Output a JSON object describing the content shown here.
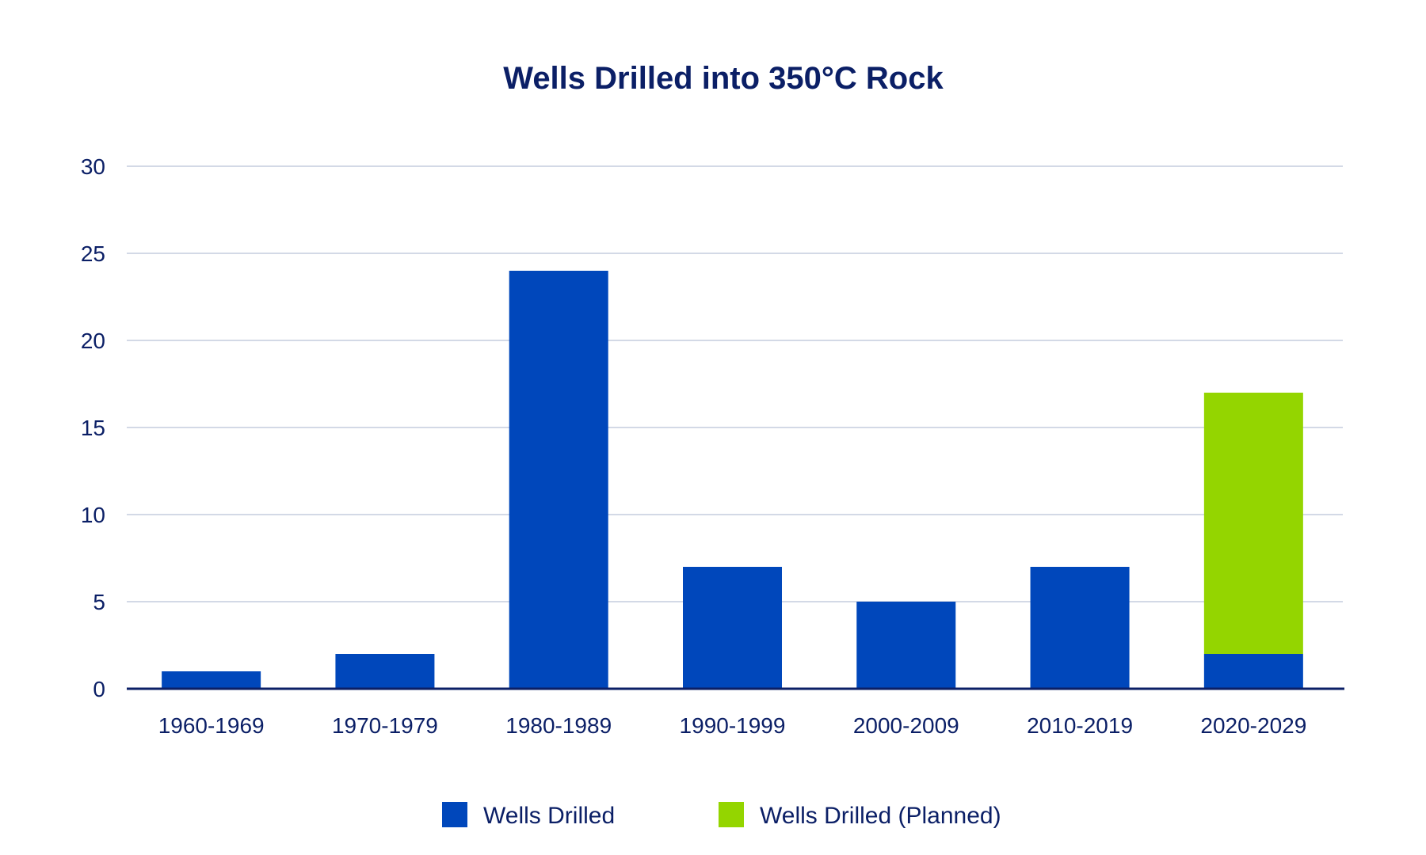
{
  "chart_data": {
    "type": "bar",
    "stacked": true,
    "title": "Wells Drilled into 350°C Rock",
    "xlabel": "",
    "ylabel": "",
    "ylim": [
      0,
      30
    ],
    "yticks": [
      0,
      5,
      10,
      15,
      20,
      25,
      30
    ],
    "grid": true,
    "legend_position": "bottom",
    "categories": [
      "1960-1969",
      "1970-1979",
      "1980-1989",
      "1990-1999",
      "2000-2009",
      "2010-2019",
      "2020-2029"
    ],
    "series": [
      {
        "name": "Wells Drilled",
        "color": "#0047bb",
        "values": [
          1,
          2,
          24,
          7,
          5,
          7,
          2
        ]
      },
      {
        "name": "Wells Drilled (Planned)",
        "color": "#94d500",
        "values": [
          0,
          0,
          0,
          0,
          0,
          0,
          15
        ]
      }
    ]
  },
  "colors": {
    "text": "#0b1f66",
    "grid": "#d3d9e6",
    "axis": "#0b1f66"
  }
}
